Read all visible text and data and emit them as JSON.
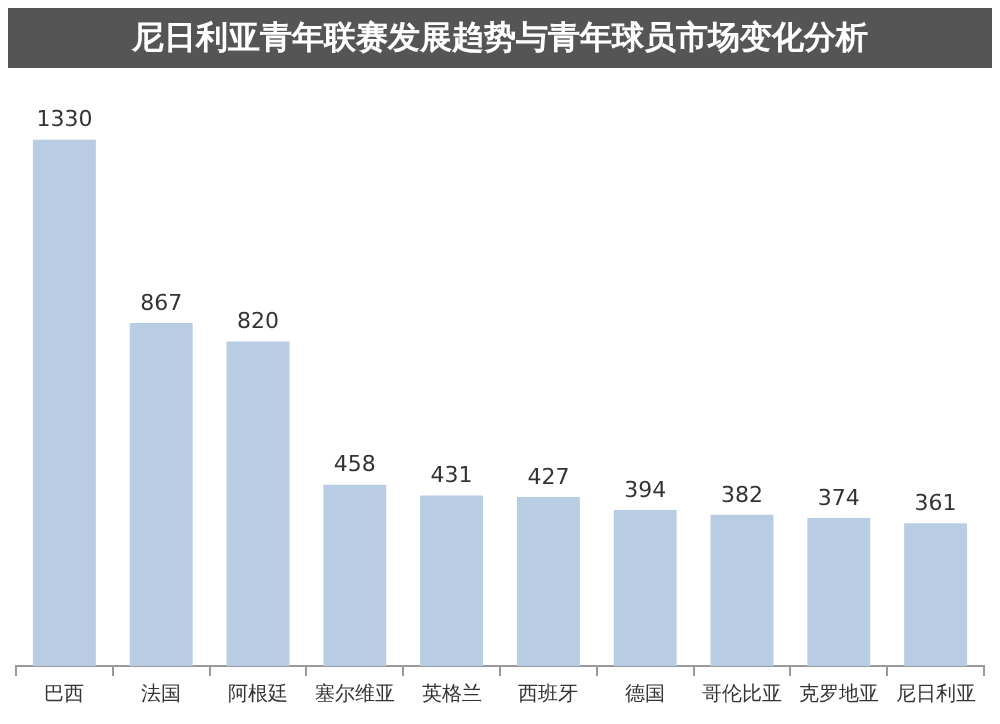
{
  "chart_data": {
    "type": "bar",
    "title": "尼日利亚青年联赛发展趋势与青年球员市场变化分析",
    "categories": [
      "巴西",
      "法国",
      "阿根廷",
      "塞尔维亚",
      "英格兰",
      "西班牙",
      "德国",
      "哥伦比亚",
      "克罗地亚",
      "尼日利亚"
    ],
    "values": [
      1330,
      867,
      820,
      458,
      431,
      427,
      394,
      382,
      374,
      361
    ],
    "color": "#b8cce4",
    "data_labels": true,
    "grid": false,
    "legend": false
  }
}
